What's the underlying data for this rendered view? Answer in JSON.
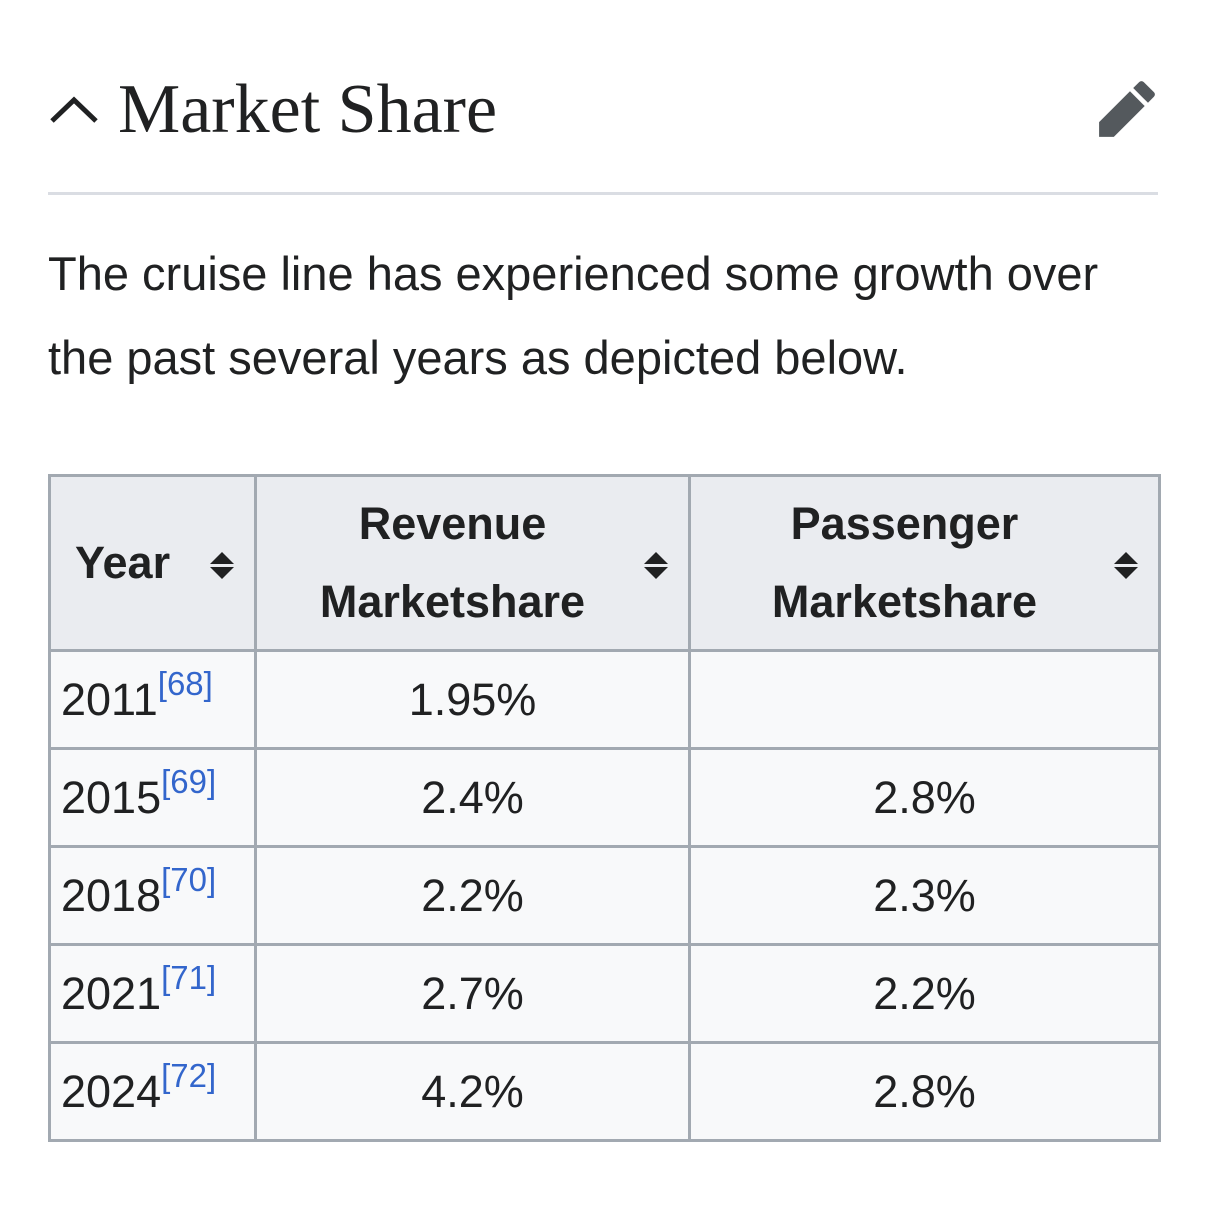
{
  "section": {
    "title": "Market Share",
    "toggle_icon": "chevron-up-icon",
    "edit_icon": "pencil-icon"
  },
  "intro": "The cruise line has experienced some growth over the past several years as depicted below.",
  "table": {
    "headers": {
      "year": "Year",
      "revenue_line1": "Revenue",
      "revenue_line2": "Marketshare",
      "passenger_line1": "Passenger",
      "passenger_line2": "Marketshare"
    },
    "rows": [
      {
        "year": "2011",
        "ref": "[68]",
        "revenue": "1.95%",
        "passenger": ""
      },
      {
        "year": "2015",
        "ref": "[69]",
        "revenue": "2.4%",
        "passenger": "2.8%"
      },
      {
        "year": "2018",
        "ref": "[70]",
        "revenue": "2.2%",
        "passenger": "2.3%"
      },
      {
        "year": "2021",
        "ref": "[71]",
        "revenue": "2.7%",
        "passenger": "2.2%"
      },
      {
        "year": "2024",
        "ref": "[72]",
        "revenue": "4.2%",
        "passenger": "2.8%"
      }
    ]
  },
  "colors": {
    "text": "#202122",
    "link": "#3366cc",
    "header_bg": "#eaecf0",
    "cell_bg": "#f8f9fa",
    "border": "#a2a9b1",
    "icon": "#54595d"
  }
}
